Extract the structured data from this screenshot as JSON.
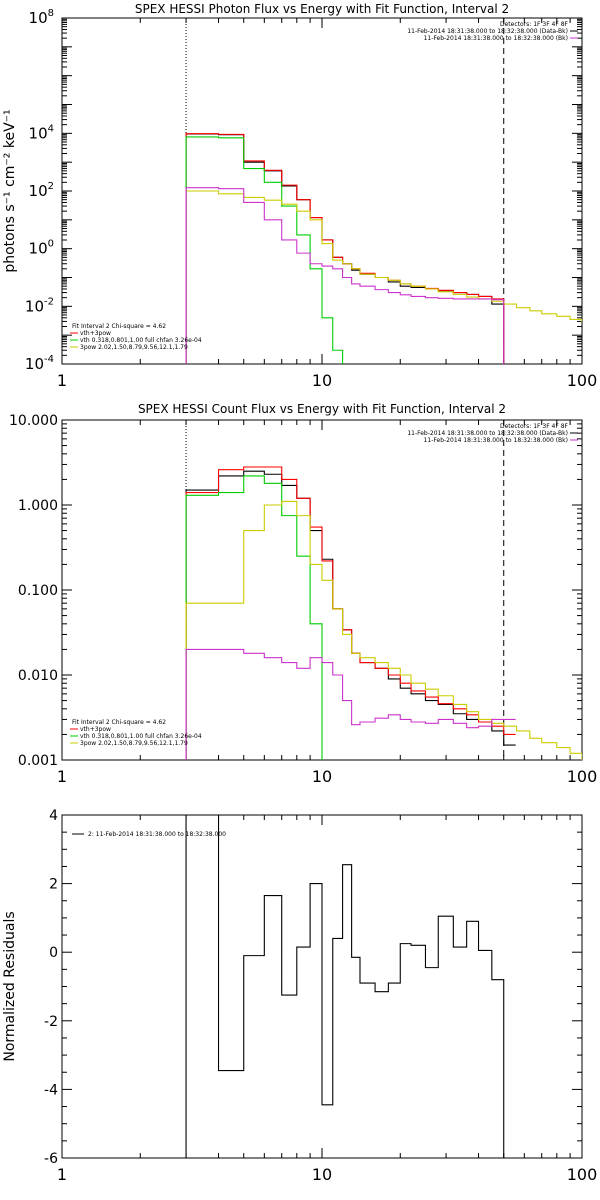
{
  "chart_data": [
    {
      "type": "line",
      "title": "SPEX HESSI Photon Flux vs Energy with Fit Function, Interval 2",
      "ylabel": "photons s⁻¹ cm⁻² keV⁻¹",
      "xscale": "log",
      "yscale": "log",
      "xlim": [
        1,
        100
      ],
      "ylim": [
        0.0001,
        100000000
      ],
      "x_ticks": [
        {
          "v": 1,
          "label": "1"
        },
        {
          "v": 10,
          "label": "10"
        },
        {
          "v": 100,
          "label": "100"
        }
      ],
      "y_ticks": [
        {
          "v": 0.0001,
          "base": "10",
          "exp": "-4"
        },
        {
          "v": 0.01,
          "base": "10",
          "exp": "-2"
        },
        {
          "v": 1,
          "base": "10",
          "exp": "0"
        },
        {
          "v": 100,
          "base": "10",
          "exp": "2"
        },
        {
          "v": 10000,
          "base": "10",
          "exp": "4"
        },
        {
          "v": 100000000,
          "base": "10",
          "exp": "8"
        }
      ],
      "vlines": [
        {
          "x": 3,
          "style": "dotted"
        },
        {
          "x": 50,
          "style": "dashed"
        }
      ],
      "legend_topright": [
        {
          "text": "Detectors: 1F 3F 4F 8F",
          "color": ""
        },
        {
          "text": "11-Feb-2014 18:31:38.000 to 18:32:38.000 (Data-Bk)",
          "color": "#000000"
        },
        {
          "text": "11-Feb-2014 18:31:38.000 to 18:32:38.000 (Bk)",
          "color": "#cc33cc"
        }
      ],
      "legend_bottomleft": [
        {
          "text": "Fit Interval 2    Chi-square = 4.62",
          "color": ""
        },
        {
          "text": "vth+3pow",
          "color": "#ff0000"
        },
        {
          "text": "vth 0.318,0.801,1.00  full chfan 3.26e-04",
          "color": "#00cc00"
        },
        {
          "text": "3pow 2.02,1.50,8.79,9.56,12.1,1.79",
          "color": "#cccc00"
        }
      ],
      "series": [
        {
          "color": "#000000",
          "x": [
            3,
            4,
            5,
            6,
            7,
            8,
            9,
            10,
            11,
            12,
            13,
            14,
            16,
            18,
            20,
            22,
            25,
            28,
            32,
            36,
            40,
            45,
            50
          ],
          "values": [
            9500,
            9000,
            1000,
            500,
            150,
            50,
            12,
            2,
            0.5,
            0.3,
            0.18,
            0.13,
            0.1,
            0.07,
            0.05,
            0.045,
            0.04,
            0.035,
            0.03,
            0.026,
            0.022,
            0.012,
            8e-05
          ]
        },
        {
          "color": "#ff0000",
          "x": [
            3,
            4,
            5,
            6,
            7,
            8,
            9,
            10,
            11,
            12,
            13,
            14,
            16,
            18,
            20,
            22,
            25,
            28,
            32,
            36,
            40,
            45,
            50
          ],
          "values": [
            9700,
            9200,
            1100,
            520,
            160,
            50,
            12,
            2,
            0.5,
            0.3,
            0.2,
            0.14,
            0.1,
            0.08,
            0.06,
            0.05,
            0.042,
            0.036,
            0.03,
            0.026,
            0.022,
            0.018,
            8e-05
          ]
        },
        {
          "color": "#00cc00",
          "x": [
            3,
            4,
            5,
            6,
            7,
            8,
            9,
            10,
            11,
            12
          ],
          "values": [
            7500,
            7000,
            600,
            200,
            30,
            3,
            0.2,
            0.004,
            0.0003,
            8e-05
          ]
        },
        {
          "color": "#cccc00",
          "x": [
            3,
            4,
            5,
            6,
            7,
            8,
            9,
            10,
            11,
            12,
            13,
            14,
            16,
            18,
            20,
            22,
            25,
            28,
            32,
            36,
            40,
            45,
            50,
            56,
            63,
            70,
            80,
            90,
            100
          ],
          "values": [
            100,
            80,
            60,
            48,
            35,
            20,
            10,
            1.5,
            0.4,
            0.3,
            0.2,
            0.13,
            0.1,
            0.08,
            0.06,
            0.05,
            0.04,
            0.032,
            0.026,
            0.021,
            0.018,
            0.015,
            0.012,
            0.009,
            0.007,
            0.0055,
            0.0045,
            0.0035,
            0.003
          ]
        },
        {
          "color": "#cc33cc",
          "x": [
            3,
            4,
            5,
            6,
            7,
            8,
            9,
            10,
            11,
            12,
            13,
            14,
            16,
            18,
            20,
            22,
            25,
            28,
            32,
            36,
            40,
            45,
            50
          ],
          "values": [
            130,
            120,
            40,
            10,
            2,
            0.7,
            0.3,
            0.25,
            0.2,
            0.1,
            0.06,
            0.05,
            0.038,
            0.03,
            0.025,
            0.022,
            0.02,
            0.019,
            0.018,
            0.018,
            0.018,
            0.017,
            8e-05
          ]
        }
      ]
    },
    {
      "type": "line",
      "title": "SPEX HESSI Count Flux vs Energy with Fit Function, Interval 2",
      "ylabel": "",
      "xscale": "log",
      "yscale": "log",
      "xlim": [
        1,
        100
      ],
      "ylim": [
        0.001,
        10
      ],
      "x_ticks": [
        {
          "v": 1,
          "label": "1"
        },
        {
          "v": 10,
          "label": "10"
        },
        {
          "v": 100,
          "label": "100"
        }
      ],
      "y_ticks": [
        {
          "v": 0.001,
          "label": "0.001"
        },
        {
          "v": 0.01,
          "label": "0.010"
        },
        {
          "v": 0.1,
          "label": "0.100"
        },
        {
          "v": 1,
          "label": "1.000"
        },
        {
          "v": 10,
          "label": "10.000"
        }
      ],
      "vlines": [
        {
          "x": 3,
          "style": "dotted"
        },
        {
          "x": 50,
          "style": "dashed"
        }
      ],
      "legend_topright": [
        {
          "text": "Detectors: 1F 3F 4F 8F",
          "color": ""
        },
        {
          "text": "11-Feb-2014 18:31:38.000 to 18:32:38.000 (Data-Bk)",
          "color": "#000000"
        },
        {
          "text": "11-Feb-2014 18:31:38.000 to 18:32:38.000 (Bk)",
          "color": "#cc33cc"
        }
      ],
      "legend_bottomleft": [
        {
          "text": "Fit Interval 2    Chi-square = 4.62",
          "color": ""
        },
        {
          "text": "vth+3pow",
          "color": "#ff0000"
        },
        {
          "text": "vth 0.318,0.801,1.00  full chfan 3.26e-04",
          "color": "#00cc00"
        },
        {
          "text": "3pow 2.02,1.50,8.79,9.56,12.1,1.79",
          "color": "#cccc00"
        }
      ],
      "series": [
        {
          "color": "#000000",
          "x": [
            3,
            4,
            5,
            6,
            7,
            8,
            9,
            10,
            11,
            12,
            13,
            14,
            16,
            18,
            20,
            22,
            25,
            28,
            32,
            36,
            40,
            45,
            50
          ],
          "values": [
            1.5,
            2.2,
            2.5,
            2.3,
            1.7,
            1.2,
            0.5,
            0.23,
            0.06,
            0.034,
            0.018,
            0.014,
            0.012,
            0.009,
            0.007,
            0.006,
            0.005,
            0.0045,
            0.0035,
            0.003,
            0.0028,
            0.0022,
            0.0015
          ]
        },
        {
          "color": "#ff0000",
          "x": [
            3,
            4,
            5,
            6,
            7,
            8,
            9,
            10,
            11,
            12,
            13,
            14,
            16,
            18,
            20,
            22,
            25,
            28,
            32,
            36,
            40,
            45,
            50
          ],
          "values": [
            1.4,
            2.6,
            2.8,
            2.8,
            2.0,
            1.2,
            0.55,
            0.22,
            0.06,
            0.034,
            0.018,
            0.014,
            0.012,
            0.01,
            0.008,
            0.0065,
            0.0055,
            0.0046,
            0.004,
            0.0034,
            0.0028,
            0.0025,
            0.002
          ]
        },
        {
          "color": "#00cc00",
          "x": [
            3,
            4,
            5,
            6,
            7,
            8,
            9,
            10
          ],
          "values": [
            1.3,
            1.4,
            2.2,
            1.8,
            0.75,
            0.25,
            0.04,
            5e-05
          ]
        },
        {
          "color": "#cccc00",
          "x": [
            3,
            4,
            5,
            6,
            7,
            8,
            9,
            10,
            11,
            12,
            13,
            14,
            16,
            18,
            20,
            22,
            25,
            28,
            32,
            36,
            40,
            45,
            50,
            56,
            63,
            70,
            80,
            90,
            100
          ],
          "values": [
            0.07,
            0.07,
            0.5,
            1.0,
            1.1,
            0.75,
            0.2,
            0.13,
            0.06,
            0.03,
            0.018,
            0.016,
            0.014,
            0.012,
            0.01,
            0.008,
            0.0068,
            0.0057,
            0.0045,
            0.0037,
            0.003,
            0.0027,
            0.0025,
            0.0022,
            0.0018,
            0.0016,
            0.0014,
            0.0012,
            0.001
          ]
        },
        {
          "color": "#cc33cc",
          "x": [
            3,
            4,
            5,
            6,
            7,
            8,
            9,
            10,
            11,
            12,
            13,
            14,
            16,
            18,
            20,
            22,
            25,
            28,
            32,
            36,
            40,
            45,
            50
          ],
          "values": [
            0.02,
            0.02,
            0.018,
            0.016,
            0.014,
            0.012,
            0.016,
            0.014,
            0.01,
            0.005,
            0.0026,
            0.0028,
            0.0031,
            0.0034,
            0.003,
            0.0028,
            0.0027,
            0.003,
            0.0027,
            0.0024,
            0.0025,
            0.003,
            0.003
          ]
        }
      ]
    },
    {
      "type": "line",
      "title": "",
      "ylabel": "Normalized Residuals",
      "xscale": "log",
      "yscale": "linear",
      "xlim": [
        1,
        100
      ],
      "ylim": [
        -6,
        4
      ],
      "x_ticks": [
        {
          "v": 1,
          "label": "1"
        },
        {
          "v": 10,
          "label": "10"
        },
        {
          "v": 100,
          "label": "100"
        }
      ],
      "y_ticks": [
        {
          "v": -6,
          "label": "-6"
        },
        {
          "v": -4,
          "label": "-4"
        },
        {
          "v": -2,
          "label": "-2"
        },
        {
          "v": 0,
          "label": "0"
        },
        {
          "v": 2,
          "label": "2"
        },
        {
          "v": 4,
          "label": "4"
        }
      ],
      "legend_topleft": [
        {
          "text": "2: 11-Feb-2014 18:31:38.000 to 18:32:38.000",
          "color": "#000000"
        }
      ],
      "series": [
        {
          "color": "#000000",
          "edges": [
            3,
            4,
            5,
            6,
            7,
            8,
            9,
            10,
            11,
            12,
            13,
            14,
            16,
            18,
            20,
            22,
            25,
            28,
            32,
            36,
            40,
            45,
            50
          ],
          "values": [
            4.0,
            -3.45,
            -0.1,
            1.65,
            -1.25,
            0.15,
            2.0,
            -4.45,
            0.4,
            2.55,
            -0.15,
            -0.9,
            -1.15,
            -0.9,
            0.25,
            0.2,
            -0.45,
            1.05,
            0.15,
            0.9,
            0.05,
            -0.8
          ]
        }
      ]
    }
  ]
}
